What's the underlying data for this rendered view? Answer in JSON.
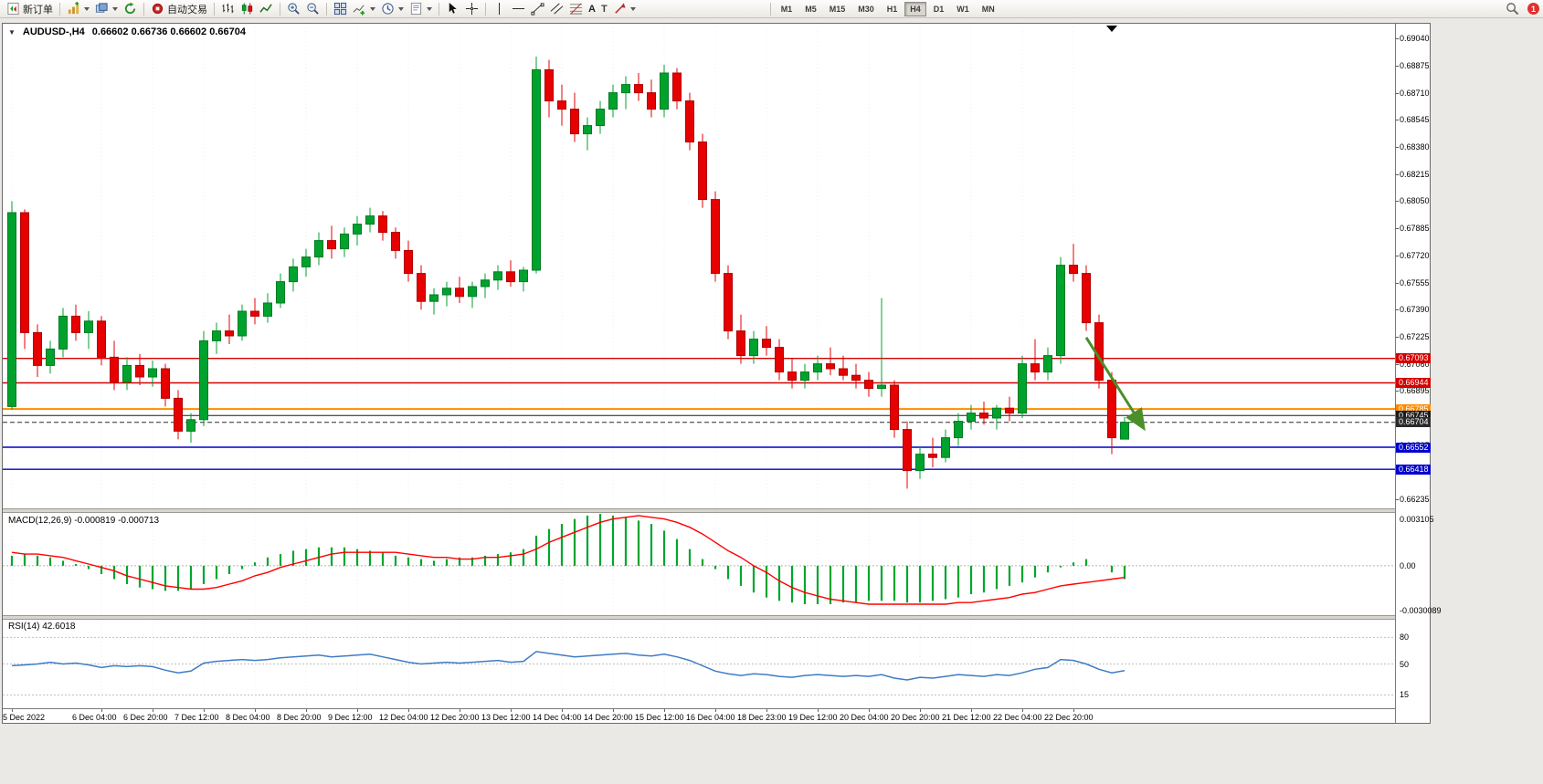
{
  "toolbar": {
    "new_order_label": "新订单",
    "autotrading_label": "自动交易",
    "text_tool_glyph": "A",
    "label_tool_glyph": "T",
    "timeframes": [
      "M1",
      "M5",
      "M15",
      "M30",
      "H1",
      "H4",
      "D1",
      "W1",
      "MN"
    ],
    "active_timeframe": "H4",
    "notification_count": "1",
    "icons": [
      "new-order",
      "new-chart",
      "profiles",
      "refresh",
      "autotrading",
      "bar-chart",
      "candlestick",
      "line-chart",
      "zoom-in",
      "zoom-out",
      "tile-windows",
      "indicators",
      "periods",
      "templates",
      "cursor",
      "crosshair",
      "vertical-line",
      "horizontal-line",
      "trendline",
      "equidistant-channel",
      "fibonacci",
      "text",
      "text-label",
      "arrow-tool",
      "search",
      "notification"
    ]
  },
  "chart": {
    "title_symbol": "AUDUSD-,H4",
    "title_ohlc": "0.66602 0.66736 0.66602 0.66704"
  },
  "macd": {
    "label": "MACD(12,26,9) -0.000819 -0.000713",
    "axis": [
      "0.003105",
      "0.00",
      "-0.0030089"
    ]
  },
  "rsi": {
    "label": "RSI(14) 42.6018",
    "axis": [
      "80",
      "50",
      "15"
    ]
  },
  "price_axis_labels": [
    "0.69040",
    "0.68875",
    "0.68710",
    "0.68545",
    "0.68380",
    "0.68215",
    "0.68050",
    "0.67885",
    "0.67720",
    "0.67555",
    "0.67390",
    "0.67225",
    "0.67060",
    "0.66895",
    "0.66730",
    "0.66565",
    "0.66400",
    "0.66235"
  ],
  "colors": {
    "bull": "#00a22e",
    "bull_dark": "#007a20",
    "bear": "#e60000",
    "bear_dark": "#b00000",
    "macd_hist": "#00a62e",
    "macd_signal": "#ff0000",
    "rsi_line": "#3f7cc4",
    "grid": "#efefef",
    "arrow": "#4a8f28"
  },
  "chart_data": {
    "type": "candlestick",
    "symbol": "AUDUSD-",
    "timeframe": "H4",
    "current_ohlc": {
      "open": 0.66602,
      "high": 0.66736,
      "low": 0.66602,
      "close": 0.66704
    },
    "price_max": 0.6913,
    "price_min": 0.6618,
    "candles": [
      [
        0.668,
        0.6805,
        0.6678,
        0.6798
      ],
      [
        0.6798,
        0.68,
        0.6715,
        0.6725
      ],
      [
        0.6725,
        0.673,
        0.6698,
        0.6705
      ],
      [
        0.6705,
        0.672,
        0.67,
        0.6715
      ],
      [
        0.6715,
        0.674,
        0.671,
        0.6735
      ],
      [
        0.6735,
        0.6742,
        0.672,
        0.6725
      ],
      [
        0.6725,
        0.6738,
        0.6715,
        0.6732
      ],
      [
        0.6732,
        0.6735,
        0.6705,
        0.671
      ],
      [
        0.671,
        0.672,
        0.669,
        0.6695
      ],
      [
        0.6695,
        0.671,
        0.669,
        0.6705
      ],
      [
        0.6705,
        0.6712,
        0.6693,
        0.6698
      ],
      [
        0.6698,
        0.6708,
        0.6692,
        0.6703
      ],
      [
        0.6703,
        0.6706,
        0.668,
        0.6685
      ],
      [
        0.6685,
        0.669,
        0.666,
        0.6665
      ],
      [
        0.6665,
        0.6676,
        0.6658,
        0.6672
      ],
      [
        0.6672,
        0.6726,
        0.6668,
        0.672
      ],
      [
        0.672,
        0.6731,
        0.6712,
        0.6726
      ],
      [
        0.6726,
        0.6736,
        0.6718,
        0.6723
      ],
      [
        0.6723,
        0.6742,
        0.672,
        0.6738
      ],
      [
        0.6738,
        0.6746,
        0.673,
        0.6735
      ],
      [
        0.6735,
        0.6749,
        0.6731,
        0.6743
      ],
      [
        0.6743,
        0.6761,
        0.674,
        0.6756
      ],
      [
        0.6756,
        0.677,
        0.675,
        0.6765
      ],
      [
        0.6765,
        0.6776,
        0.6759,
        0.6771
      ],
      [
        0.6771,
        0.6786,
        0.6766,
        0.6781
      ],
      [
        0.6781,
        0.679,
        0.677,
        0.6776
      ],
      [
        0.6776,
        0.6789,
        0.6771,
        0.6785
      ],
      [
        0.6785,
        0.6796,
        0.6778,
        0.6791
      ],
      [
        0.6791,
        0.6801,
        0.6786,
        0.6796
      ],
      [
        0.6796,
        0.6799,
        0.6781,
        0.6786
      ],
      [
        0.6786,
        0.6789,
        0.677,
        0.6775
      ],
      [
        0.6775,
        0.6781,
        0.6756,
        0.6761
      ],
      [
        0.6761,
        0.6766,
        0.6739,
        0.6744
      ],
      [
        0.6744,
        0.6752,
        0.6736,
        0.6748
      ],
      [
        0.6748,
        0.6756,
        0.6741,
        0.6752
      ],
      [
        0.6752,
        0.6759,
        0.6743,
        0.6747
      ],
      [
        0.6747,
        0.6756,
        0.674,
        0.6753
      ],
      [
        0.6753,
        0.6761,
        0.6746,
        0.6757
      ],
      [
        0.6757,
        0.6766,
        0.6751,
        0.6762
      ],
      [
        0.6762,
        0.6769,
        0.6753,
        0.6756
      ],
      [
        0.6756,
        0.6765,
        0.675,
        0.6763
      ],
      [
        0.6763,
        0.6893,
        0.6761,
        0.6885
      ],
      [
        0.6885,
        0.6891,
        0.6856,
        0.6866
      ],
      [
        0.6866,
        0.6876,
        0.6851,
        0.6861
      ],
      [
        0.6861,
        0.6871,
        0.6841,
        0.6846
      ],
      [
        0.6846,
        0.6856,
        0.6836,
        0.6851
      ],
      [
        0.6851,
        0.6866,
        0.6846,
        0.6861
      ],
      [
        0.6861,
        0.6876,
        0.6856,
        0.6871
      ],
      [
        0.6871,
        0.6881,
        0.6861,
        0.6876
      ],
      [
        0.6876,
        0.6883,
        0.6866,
        0.6871
      ],
      [
        0.6871,
        0.6879,
        0.6856,
        0.6861
      ],
      [
        0.6861,
        0.6888,
        0.6856,
        0.6883
      ],
      [
        0.6883,
        0.6886,
        0.6861,
        0.6866
      ],
      [
        0.6866,
        0.6871,
        0.6836,
        0.6841
      ],
      [
        0.6841,
        0.6846,
        0.6801,
        0.6806
      ],
      [
        0.6806,
        0.6811,
        0.6756,
        0.6761
      ],
      [
        0.6761,
        0.6766,
        0.6721,
        0.6726
      ],
      [
        0.6726,
        0.6736,
        0.6706,
        0.6711
      ],
      [
        0.6711,
        0.6726,
        0.6706,
        0.6721
      ],
      [
        0.6721,
        0.6729,
        0.6711,
        0.6716
      ],
      [
        0.6716,
        0.6721,
        0.6696,
        0.6701
      ],
      [
        0.6701,
        0.6709,
        0.6691,
        0.6696
      ],
      [
        0.6696,
        0.6706,
        0.6691,
        0.6701
      ],
      [
        0.6701,
        0.6711,
        0.6696,
        0.6706
      ],
      [
        0.6706,
        0.6716,
        0.6699,
        0.6703
      ],
      [
        0.6703,
        0.6711,
        0.6696,
        0.6699
      ],
      [
        0.6699,
        0.6706,
        0.6691,
        0.6696
      ],
      [
        0.6696,
        0.6701,
        0.6686,
        0.6691
      ],
      [
        0.6691,
        0.6746,
        0.6686,
        0.6693
      ],
      [
        0.6693,
        0.6696,
        0.6661,
        0.6666
      ],
      [
        0.6666,
        0.6671,
        0.663,
        0.6641
      ],
      [
        0.6641,
        0.6656,
        0.6636,
        0.6651
      ],
      [
        0.6651,
        0.6661,
        0.6643,
        0.6649
      ],
      [
        0.6649,
        0.6666,
        0.6646,
        0.6661
      ],
      [
        0.6661,
        0.6676,
        0.6656,
        0.6671
      ],
      [
        0.6671,
        0.6681,
        0.6666,
        0.6676
      ],
      [
        0.6676,
        0.6683,
        0.6669,
        0.6673
      ],
      [
        0.6673,
        0.6681,
        0.6666,
        0.6679
      ],
      [
        0.6679,
        0.6686,
        0.6671,
        0.6676
      ],
      [
        0.6676,
        0.6711,
        0.6673,
        0.6706
      ],
      [
        0.6706,
        0.6721,
        0.6696,
        0.6701
      ],
      [
        0.6701,
        0.6716,
        0.6696,
        0.6711
      ],
      [
        0.6711,
        0.6771,
        0.6706,
        0.6766
      ],
      [
        0.6766,
        0.6779,
        0.6756,
        0.6761
      ],
      [
        0.6761,
        0.6766,
        0.6726,
        0.6731
      ],
      [
        0.6731,
        0.6736,
        0.6691,
        0.6696
      ],
      [
        0.6696,
        0.6701,
        0.6651,
        0.6661
      ],
      [
        0.66602,
        0.66736,
        0.66602,
        0.66704
      ]
    ],
    "time_labels": [
      {
        "text": "5 Dec 2022",
        "index": 0
      },
      {
        "text": "6 Dec 04:00",
        "index": 7
      },
      {
        "text": "6 Dec 20:00",
        "index": 11
      },
      {
        "text": "7 Dec 12:00",
        "index": 15
      },
      {
        "text": "8 Dec 04:00",
        "index": 19
      },
      {
        "text": "8 Dec 20:00",
        "index": 23
      },
      {
        "text": "9 Dec 12:00",
        "index": 27
      },
      {
        "text": "12 Dec 04:00",
        "index": 31
      },
      {
        "text": "12 Dec 20:00",
        "index": 35
      },
      {
        "text": "13 Dec 12:00",
        "index": 39
      },
      {
        "text": "14 Dec 04:00",
        "index": 43
      },
      {
        "text": "14 Dec 20:00",
        "index": 47
      },
      {
        "text": "15 Dec 12:00",
        "index": 51
      },
      {
        "text": "16 Dec 04:00",
        "index": 55
      },
      {
        "text": "18 Dec 23:00",
        "index": 59
      },
      {
        "text": "19 Dec 12:00",
        "index": 63
      },
      {
        "text": "20 Dec 04:00",
        "index": 67
      },
      {
        "text": "20 Dec 20:00",
        "index": 71
      },
      {
        "text": "21 Dec 12:00",
        "index": 75
      },
      {
        "text": "22 Dec 04:00",
        "index": 79
      },
      {
        "text": "22 Dec 20:00",
        "index": 83
      }
    ],
    "price_lines": [
      {
        "value": "0.67093",
        "price": 0.67093,
        "color": "#d40000",
        "width": 1.4,
        "dash": false
      },
      {
        "value": "0.66944",
        "price": 0.66944,
        "color": "#d40000",
        "width": 1.4,
        "dash": false
      },
      {
        "value": "0.66785",
        "price": 0.66785,
        "color": "#ff8c00",
        "width": 2,
        "dash": false
      },
      {
        "value": "0.66745",
        "price": 0.66745,
        "color": "#1a1a1a",
        "width": 1,
        "dash": false
      },
      {
        "value": "0.66704",
        "price": 0.66704,
        "color": "#2b2b2b",
        "width": 1,
        "dash": true
      },
      {
        "value": "0.66552",
        "price": 0.66552,
        "color": "#0000cc",
        "width": 1.4,
        "dash": false
      },
      {
        "value": "0.66418",
        "price": 0.66418,
        "color": "#0000cc",
        "width": 1.4,
        "dash": false
      }
    ],
    "trend_arrow": {
      "from_index": 84,
      "from_price": 0.6722,
      "to_index": 88.4,
      "to_price": 0.6668
    },
    "macd": {
      "max": 0.003105,
      "min": -0.0030089,
      "histogram": [
        0.0006,
        0.0007,
        0.0006,
        0.0005,
        0.0003,
        0.0001,
        -0.0002,
        -0.0005,
        -0.0008,
        -0.0011,
        -0.0013,
        -0.0014,
        -0.0015,
        -0.0015,
        -0.0014,
        -0.0011,
        -0.0008,
        -0.0005,
        -0.0002,
        0.0002,
        0.0005,
        0.0007,
        0.0009,
        0.001,
        0.0011,
        0.0011,
        0.0011,
        0.001,
        0.0009,
        0.0008,
        0.0006,
        0.0005,
        0.0004,
        0.0003,
        0.0004,
        0.0005,
        0.0005,
        0.0006,
        0.0007,
        0.0008,
        0.001,
        0.0018,
        0.0022,
        0.0025,
        0.0028,
        0.003,
        0.0031,
        0.003,
        0.0029,
        0.0027,
        0.0025,
        0.0021,
        0.0016,
        0.001,
        0.0004,
        -0.0002,
        -0.0008,
        -0.0012,
        -0.0016,
        -0.0019,
        -0.0021,
        -0.0022,
        -0.0023,
        -0.0023,
        -0.0023,
        -0.0022,
        -0.0022,
        -0.0021,
        -0.0021,
        -0.0021,
        -0.0022,
        -0.0022,
        -0.0021,
        -0.002,
        -0.0019,
        -0.0017,
        -0.0016,
        -0.0014,
        -0.0012,
        -0.001,
        -0.0007,
        -0.0004,
        -0.0001,
        0.0002,
        0.0004,
        0.0,
        -0.0004,
        -0.0008
      ],
      "signal": [
        0.0008,
        0.0007,
        0.0007,
        0.0006,
        0.0005,
        0.0003,
        0.0001,
        -0.0001,
        -0.0003,
        -0.0006,
        -0.0008,
        -0.001,
        -0.0012,
        -0.0013,
        -0.0014,
        -0.0014,
        -0.0013,
        -0.0011,
        -0.0009,
        -0.0006,
        -0.0004,
        -0.0001,
        0.0001,
        0.0003,
        0.0005,
        0.0007,
        0.0008,
        0.0008,
        0.0008,
        0.0008,
        0.0008,
        0.0007,
        0.0006,
        0.0005,
        0.0005,
        0.0004,
        0.0004,
        0.0005,
        0.0005,
        0.0006,
        0.0007,
        0.001,
        0.0014,
        0.0017,
        0.002,
        0.0023,
        0.0026,
        0.0028,
        0.0029,
        0.003,
        0.0029,
        0.0028,
        0.0026,
        0.0023,
        0.0019,
        0.0014,
        0.0009,
        0.0005,
        0.0,
        -0.0004,
        -0.0009,
        -0.0013,
        -0.0016,
        -0.0018,
        -0.002,
        -0.0021,
        -0.0022,
        -0.0023,
        -0.0023,
        -0.0023,
        -0.0023,
        -0.0023,
        -0.0023,
        -0.0023,
        -0.0022,
        -0.0022,
        -0.0021,
        -0.002,
        -0.0019,
        -0.0017,
        -0.0016,
        -0.0014,
        -0.0012,
        -0.0011,
        -0.001,
        -0.0009,
        -0.0008,
        -0.0007
      ]
    },
    "rsi": {
      "levels": [
        80,
        50,
        15
      ],
      "scale_min": 0,
      "scale_max": 100,
      "values": [
        48,
        49,
        50,
        52,
        50,
        51,
        49,
        46,
        48,
        47,
        48,
        47,
        43,
        40,
        42,
        51,
        53,
        54,
        55,
        54,
        55,
        57,
        58,
        59,
        60,
        58,
        59,
        60,
        61,
        58,
        55,
        52,
        50,
        51,
        52,
        51,
        52,
        53,
        54,
        52,
        53,
        64,
        62,
        60,
        58,
        59,
        60,
        61,
        62,
        60,
        59,
        61,
        58,
        54,
        48,
        42,
        39,
        37,
        39,
        38,
        36,
        35,
        37,
        38,
        37,
        36,
        37,
        36,
        38,
        34,
        32,
        35,
        34,
        36,
        38,
        37,
        36,
        38,
        37,
        40,
        44,
        46,
        55,
        54,
        50,
        44,
        40,
        42.6
      ]
    }
  }
}
